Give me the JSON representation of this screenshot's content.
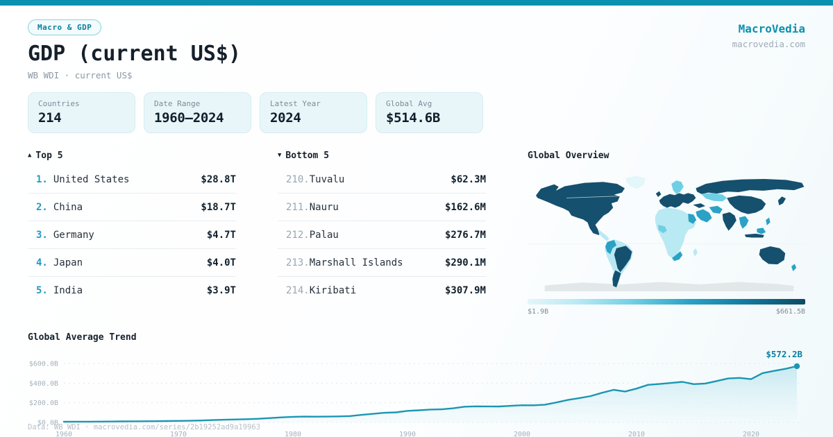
{
  "theme": {
    "accent": "#0c90b0",
    "accent_text": "#0b7f9e",
    "text_dark": "#15202b",
    "text_muted": "#8a97a3",
    "rank_blue": "#2499c4",
    "rank_muted": "#9aa6b1",
    "card_bg": "#e9f6f9",
    "card_border": "#d5ecf2",
    "badge_bg": "#f2fbfd",
    "badge_border": "#8fd0df",
    "separator": "#e7edf1",
    "map_dark": "#15506e",
    "map_mid": "#2aa2c6",
    "map_light": "#6fcfe3",
    "map_lighter": "#b9e9f3",
    "map_lightest": "#e3f6fa",
    "map_nodata": "#e2e7ea",
    "chart_line": "#1c96b2",
    "grid": "#dde8ed",
    "tick_text": "#a3b1bb",
    "footer_text": "#b8c0c8"
  },
  "header": {
    "badge": "Macro & GDP",
    "title": "GDP (current US$)",
    "subtitle": "WB WDI · current US$",
    "brand": "MacroVedia",
    "brand_domain": "macrovedia.com"
  },
  "stats": [
    {
      "label": "Countries",
      "value": "214"
    },
    {
      "label": "Date Range",
      "value": "1960—2024"
    },
    {
      "label": "Latest Year",
      "value": "2024"
    },
    {
      "label": "Global Avg",
      "value": "$514.6B"
    }
  ],
  "top5": {
    "arrow": "▲",
    "title": "Top 5",
    "rows": [
      {
        "rank": "1.",
        "name": "United States",
        "value": "$28.8T"
      },
      {
        "rank": "2.",
        "name": "China",
        "value": "$18.7T"
      },
      {
        "rank": "3.",
        "name": "Germany",
        "value": "$4.7T"
      },
      {
        "rank": "4.",
        "name": "Japan",
        "value": "$4.0T"
      },
      {
        "rank": "5.",
        "name": "India",
        "value": "$3.9T"
      }
    ]
  },
  "bottom5": {
    "arrow": "▼",
    "title": "Bottom 5",
    "rows": [
      {
        "rank": "210.",
        "name": "Tuvalu",
        "value": "$62.3M"
      },
      {
        "rank": "211.",
        "name": "Nauru",
        "value": "$162.6M"
      },
      {
        "rank": "212.",
        "name": "Palau",
        "value": "$276.7M"
      },
      {
        "rank": "213.",
        "name": "Marshall Islands",
        "value": "$290.1M"
      },
      {
        "rank": "214.",
        "name": "Kiribati",
        "value": "$307.9M"
      }
    ]
  },
  "map": {
    "title": "Global Overview",
    "type": "choropleth",
    "legend_min": "$1.9B",
    "legend_max": "$661.5B"
  },
  "chart_data": {
    "type": "area",
    "title": "Global Average Trend",
    "x": [
      1960,
      1961,
      1962,
      1963,
      1964,
      1965,
      1966,
      1967,
      1968,
      1969,
      1970,
      1971,
      1972,
      1973,
      1974,
      1975,
      1976,
      1977,
      1978,
      1979,
      1980,
      1981,
      1982,
      1983,
      1984,
      1985,
      1986,
      1987,
      1988,
      1989,
      1990,
      1991,
      1992,
      1993,
      1994,
      1995,
      1996,
      1997,
      1998,
      1999,
      2000,
      2001,
      2002,
      2003,
      2004,
      2005,
      2006,
      2007,
      2008,
      2009,
      2010,
      2011,
      2012,
      2013,
      2014,
      2015,
      2016,
      2017,
      2018,
      2019,
      2020,
      2021,
      2022,
      2023,
      2024
    ],
    "values": [
      7.2,
      7.5,
      8.1,
      8.6,
      9.5,
      10.3,
      11.2,
      11.9,
      12.9,
      14.2,
      15.3,
      17.0,
      19.5,
      23.7,
      27.5,
      30.6,
      33.4,
      37.6,
      44.3,
      51.5,
      57.5,
      59.1,
      58.5,
      59.5,
      61.6,
      64.7,
      76.7,
      87.5,
      97.8,
      102.0,
      118.0,
      123.8,
      131.5,
      133.6,
      143.9,
      160.0,
      163.7,
      163.1,
      162.5,
      168.7,
      175.1,
      174.0,
      180.7,
      203.0,
      228.4,
      247.5,
      268.3,
      301.8,
      331.8,
      314.8,
      344.8,
      382.6,
      390.9,
      401.8,
      412.6,
      389.4,
      396.1,
      421.5,
      447.3,
      453.5,
      440.7,
      501.7,
      524.5,
      545.7,
      572.2
    ],
    "unit": "$B",
    "xlabel": "",
    "ylabel": "",
    "xticks": [
      1960,
      1970,
      1980,
      1990,
      2000,
      2010,
      2020
    ],
    "yticks": [
      {
        "v": 0,
        "label": "$0.0B"
      },
      {
        "v": 200,
        "label": "$200.0B"
      },
      {
        "v": 400,
        "label": "$400.0B"
      },
      {
        "v": 600,
        "label": "$600.0B"
      }
    ],
    "ylim": [
      0,
      620
    ],
    "grid": "dashed-horizontal",
    "legend": "none",
    "end_value": 572.2,
    "end_label": "$572.2B"
  },
  "footer": {
    "text": "Data: WB WDI · macrovedia.com/series/2b19252ad9a19963"
  }
}
